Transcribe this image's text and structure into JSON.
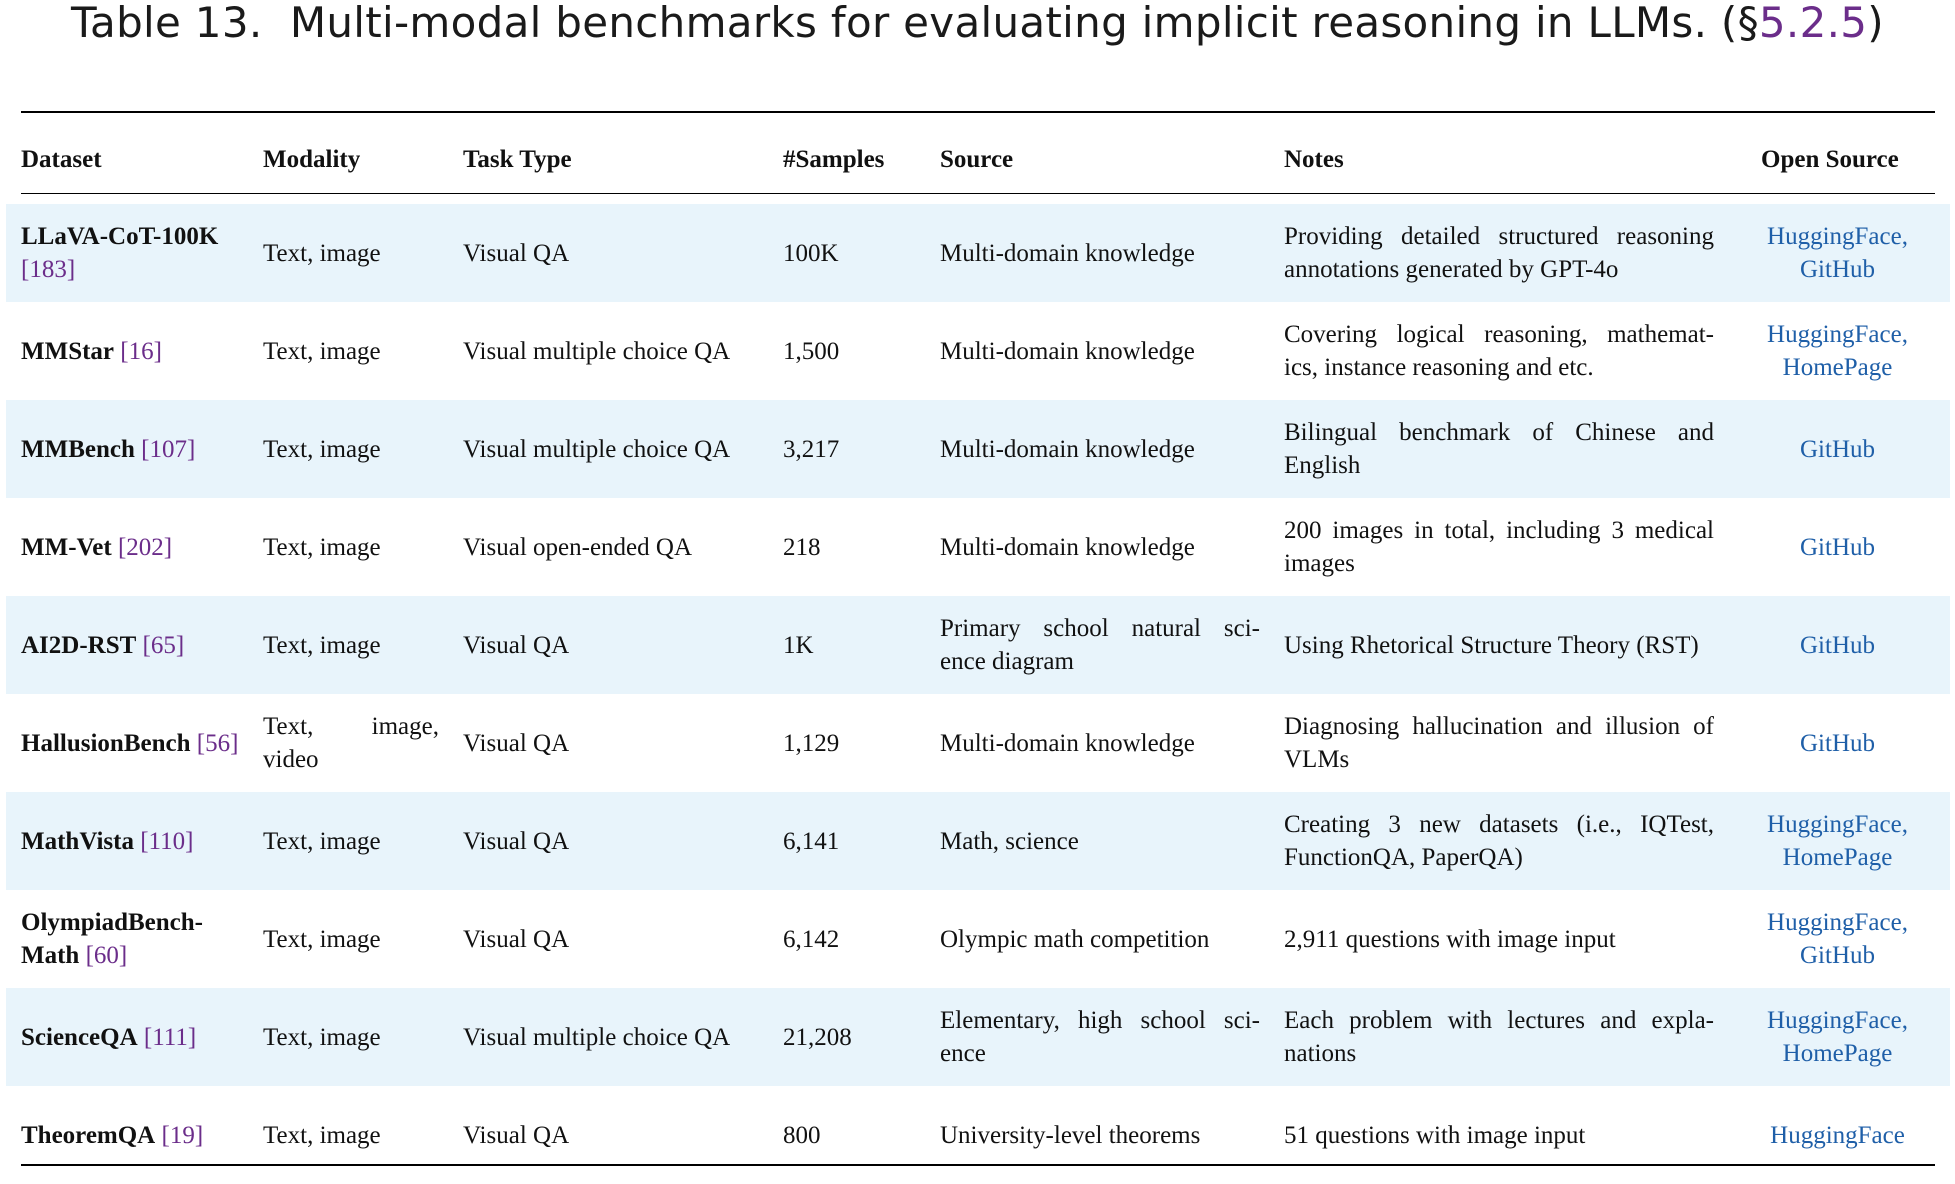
{
  "caption": {
    "label": "Table 13.",
    "text": "Multi-modal benchmarks for evaluating implicit reasoning in LLMs. (§",
    "ref": "5.2.5",
    "close": ")"
  },
  "headers": [
    "Dataset",
    "Modality",
    "Task Type",
    "#Samples",
    "Source",
    "Notes",
    "Open Source"
  ],
  "rows": [
    {
      "name": "LLaVA-CoT-100K",
      "cite": "183",
      "modality": "Text, image",
      "task": "Visual QA",
      "samples": "100K",
      "source": "Multi-domain knowledge",
      "notes": "Providing detailed structured reasoning annotations generated by GPT-4o",
      "links": [
        "HuggingFace,",
        "GitHub"
      ]
    },
    {
      "name": "MMStar",
      "cite": "16",
      "modality": "Text, image",
      "task": "Visual multiple choice QA",
      "samples": "1,500",
      "source": "Multi-domain knowledge",
      "notes": "Covering logical reasoning, mathemat- ics, instance reasoning and etc.",
      "links": [
        "HuggingFace,",
        "HomePage"
      ]
    },
    {
      "name": "MMBench",
      "cite": "107",
      "modality": "Text, image",
      "task": "Visual multiple choice QA",
      "samples": "3,217",
      "source": "Multi-domain knowledge",
      "notes": "Bilingual benchmark of Chinese and English",
      "links": [
        "GitHub"
      ]
    },
    {
      "name": "MM-Vet",
      "cite": "202",
      "modality": "Text, image",
      "task": "Visual open-ended QA",
      "samples": "218",
      "source": "Multi-domain knowledge",
      "notes": "200 images in total, including 3 medical images",
      "links": [
        "GitHub"
      ]
    },
    {
      "name": "AI2D-RST",
      "cite": "65",
      "modality": "Text, image",
      "task": "Visual QA",
      "samples": "1K",
      "source": "Primary school natural sci- ence diagram",
      "notes": "Using Rhetorical Structure Theory (RST)",
      "links": [
        "GitHub"
      ]
    },
    {
      "name": "HallusionBench",
      "cite": "56",
      "modality": "Text, image, video",
      "task": "Visual QA",
      "samples": "1,129",
      "source": "Multi-domain knowledge",
      "notes": "Diagnosing hallucination and illusion of VLMs",
      "links": [
        "GitHub"
      ]
    },
    {
      "name": "MathVista",
      "cite": "110",
      "modality": "Text, image",
      "task": "Visual QA",
      "samples": "6,141",
      "source": "Math, science",
      "notes": "Creating 3 new datasets (i.e., IQTest, FunctionQA, PaperQA)",
      "links": [
        "HuggingFace,",
        "HomePage"
      ]
    },
    {
      "name": "OlympiadBench- Math",
      "cite": "60",
      "modality": "Text, image",
      "task": "Visual QA",
      "samples": "6,142",
      "source": "Olympic math competition",
      "notes": "2,911 questions with image input",
      "links": [
        "HuggingFace,",
        "GitHub"
      ]
    },
    {
      "name": "ScienceQA",
      "cite": "111",
      "modality": "Text, image",
      "task": "Visual multiple choice QA",
      "samples": "21,208",
      "source": "Elementary, high school sci- ence",
      "notes": "Each problem with lectures and expla- nations",
      "links": [
        "HuggingFace,",
        "HomePage"
      ]
    },
    {
      "name": "TheoremQA",
      "cite": "19",
      "modality": "Text, image",
      "task": "Visual QA",
      "samples": "800",
      "source": "University-level theorems",
      "notes": "51 questions with image input",
      "links": [
        "HuggingFace"
      ]
    }
  ],
  "colors": {
    "row_shade": "#e8f4fb",
    "citation": "#6b2d8a",
    "link": "#1f5fa8"
  }
}
